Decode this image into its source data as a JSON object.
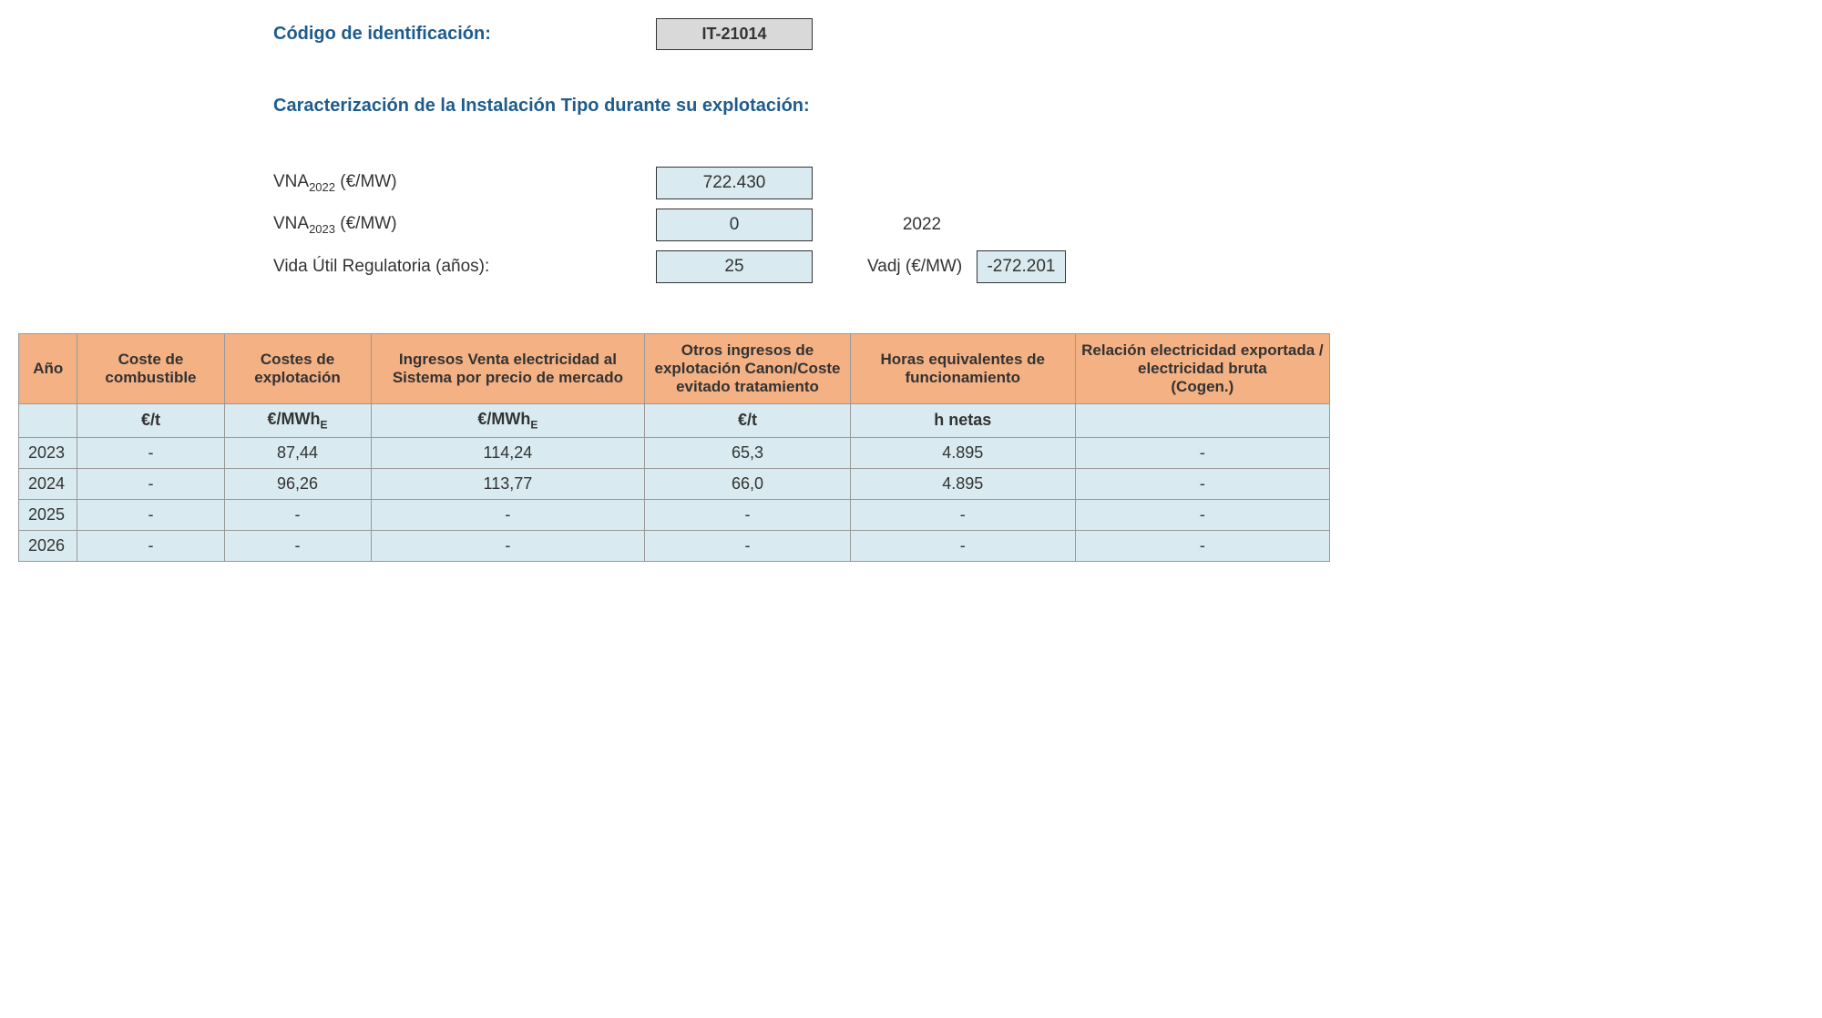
{
  "header": {
    "codigo_label": "Código de identificación:",
    "codigo_value": "IT-21014",
    "caracterizacion_label": "Caracterización de la Instalación Tipo durante su explotación:"
  },
  "params": {
    "vna2022_label_pre": "VNA",
    "vna2022_sub": "2022",
    "vna2022_label_post": " (€/MW)",
    "vna2022_value": "722.430",
    "vna2023_label_pre": "VNA",
    "vna2023_sub": "2023",
    "vna2023_label_post": " (€/MW)",
    "vna2023_value": "0",
    "year_right": "2022",
    "vida_label": "Vida Útil Regulatoria (años):",
    "vida_value": "25",
    "vadj_label": "Vadj (€/MW)",
    "vadj_value": "-272.201"
  },
  "table": {
    "headers": {
      "ano": "Año",
      "coste_comb": "Coste de combustible",
      "costes_expl": "Costes de explotación",
      "ingresos_venta": "Ingresos Venta electricidad al Sistema por precio de mercado",
      "otros_ingresos": "Otros ingresos de explotación Canon/Coste evitado tratamiento",
      "horas": "Horas equivalentes de funcionamiento",
      "relacion": "Relación electricidad exportada / electricidad bruta\n(Cogen.)"
    },
    "units": {
      "ano": "",
      "coste_comb": "€/t",
      "costes_expl_pre": "€/MWh",
      "ingresos_venta_pre": "€/MWh",
      "sub_e": "E",
      "otros_ingresos": "€/t",
      "horas": "h netas",
      "relacion": ""
    },
    "rows": [
      {
        "ano": "2023",
        "coste_comb": "-",
        "costes_expl": "87,44",
        "ingresos_venta": "114,24",
        "otros_ingresos": "65,3",
        "horas": "4.895",
        "relacion": "-"
      },
      {
        "ano": "2024",
        "coste_comb": "-",
        "costes_expl": "96,26",
        "ingresos_venta": "113,77",
        "otros_ingresos": "66,0",
        "horas": "4.895",
        "relacion": "-"
      },
      {
        "ano": "2025",
        "coste_comb": "-",
        "costes_expl": "-",
        "ingresos_venta": "-",
        "otros_ingresos": "-",
        "horas": "-",
        "relacion": "-"
      },
      {
        "ano": "2026",
        "coste_comb": "-",
        "costes_expl": "-",
        "ingresos_venta": "-",
        "otros_ingresos": "-",
        "horas": "-",
        "relacion": "-"
      }
    ],
    "col_widths": [
      "60px",
      "150px",
      "150px",
      "280px",
      "210px",
      "230px",
      "260px"
    ]
  },
  "colors": {
    "header_bg": "#f4b183",
    "cell_bg": "#d9ebf0",
    "codigo_bg": "#d9d9d9",
    "label_color": "#1f5c8b",
    "border": "#999"
  }
}
